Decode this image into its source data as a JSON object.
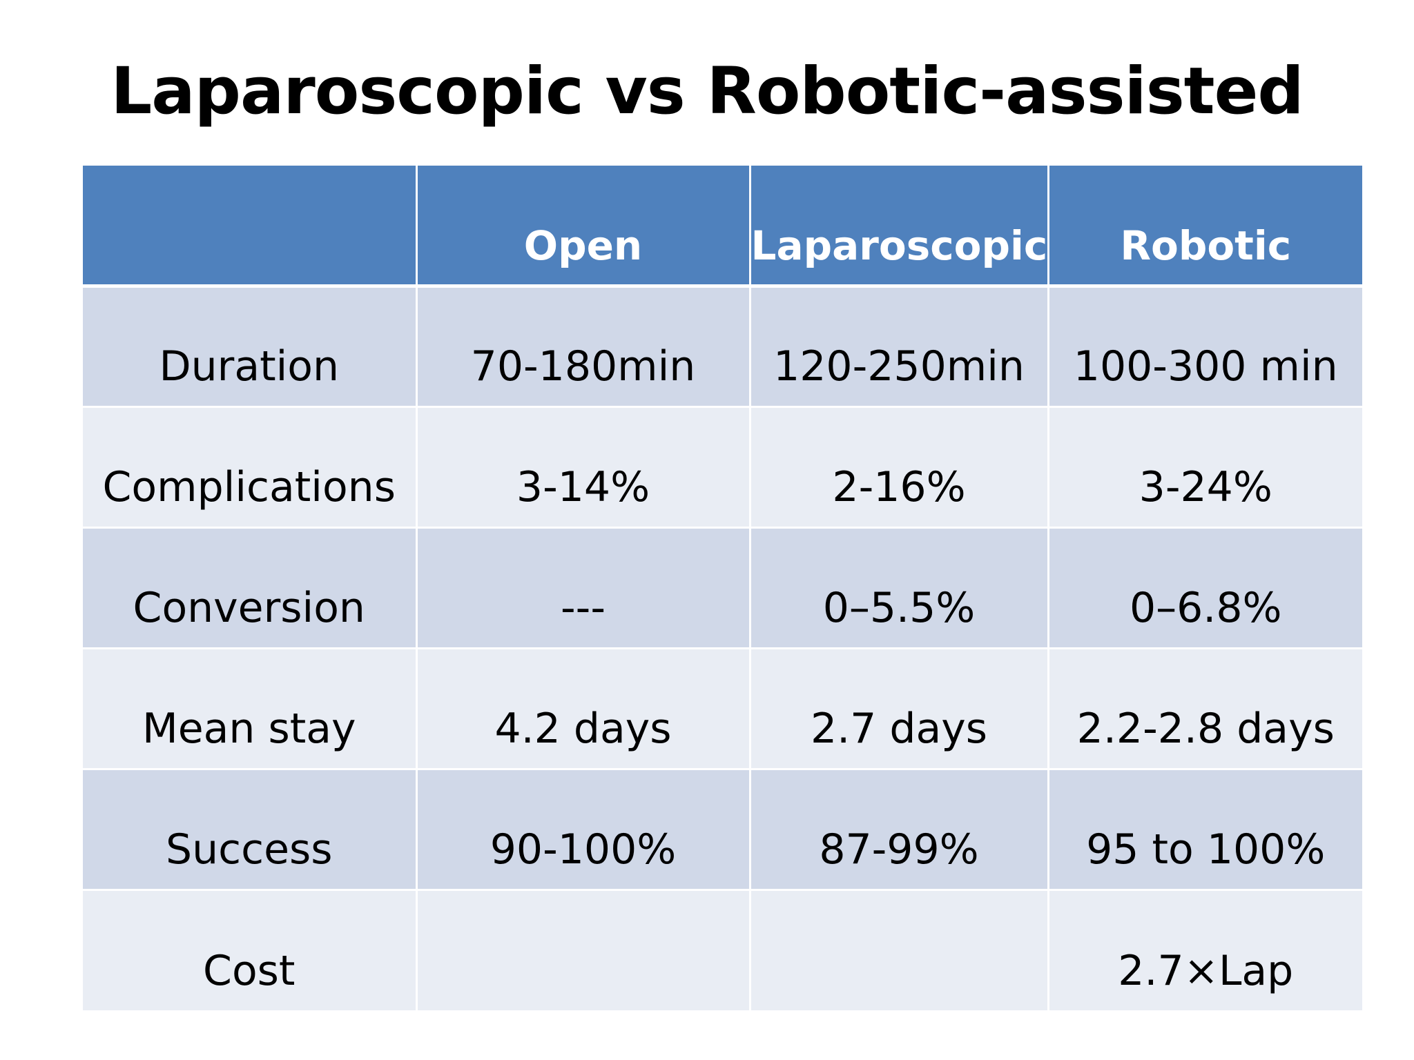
{
  "slide": {
    "title": "Laparoscopic vs Robotic-assisted"
  },
  "table": {
    "headers": [
      "",
      "Open",
      "Laparoscopic",
      "Robotic"
    ],
    "rows": [
      [
        "Duration",
        "70-180min",
        "120-250min",
        "100-300 min"
      ],
      [
        "Complications",
        "3-14%",
        "2-16%",
        "3-24%"
      ],
      [
        "Conversion",
        "---",
        "0–5.5%",
        "0–6.8%"
      ],
      [
        "Mean stay",
        "4.2 days",
        "2.7 days",
        "2.2-2.8 days"
      ],
      [
        "Success",
        "90-100%",
        "87-99%",
        "95 to 100%"
      ],
      [
        "Cost",
        "",
        "",
        "2.7×Lap"
      ]
    ]
  },
  "colors": {
    "header_bg": "#4f81bd",
    "row_odd_bg": "#d0d8e8",
    "row_even_bg": "#e9edf4"
  }
}
